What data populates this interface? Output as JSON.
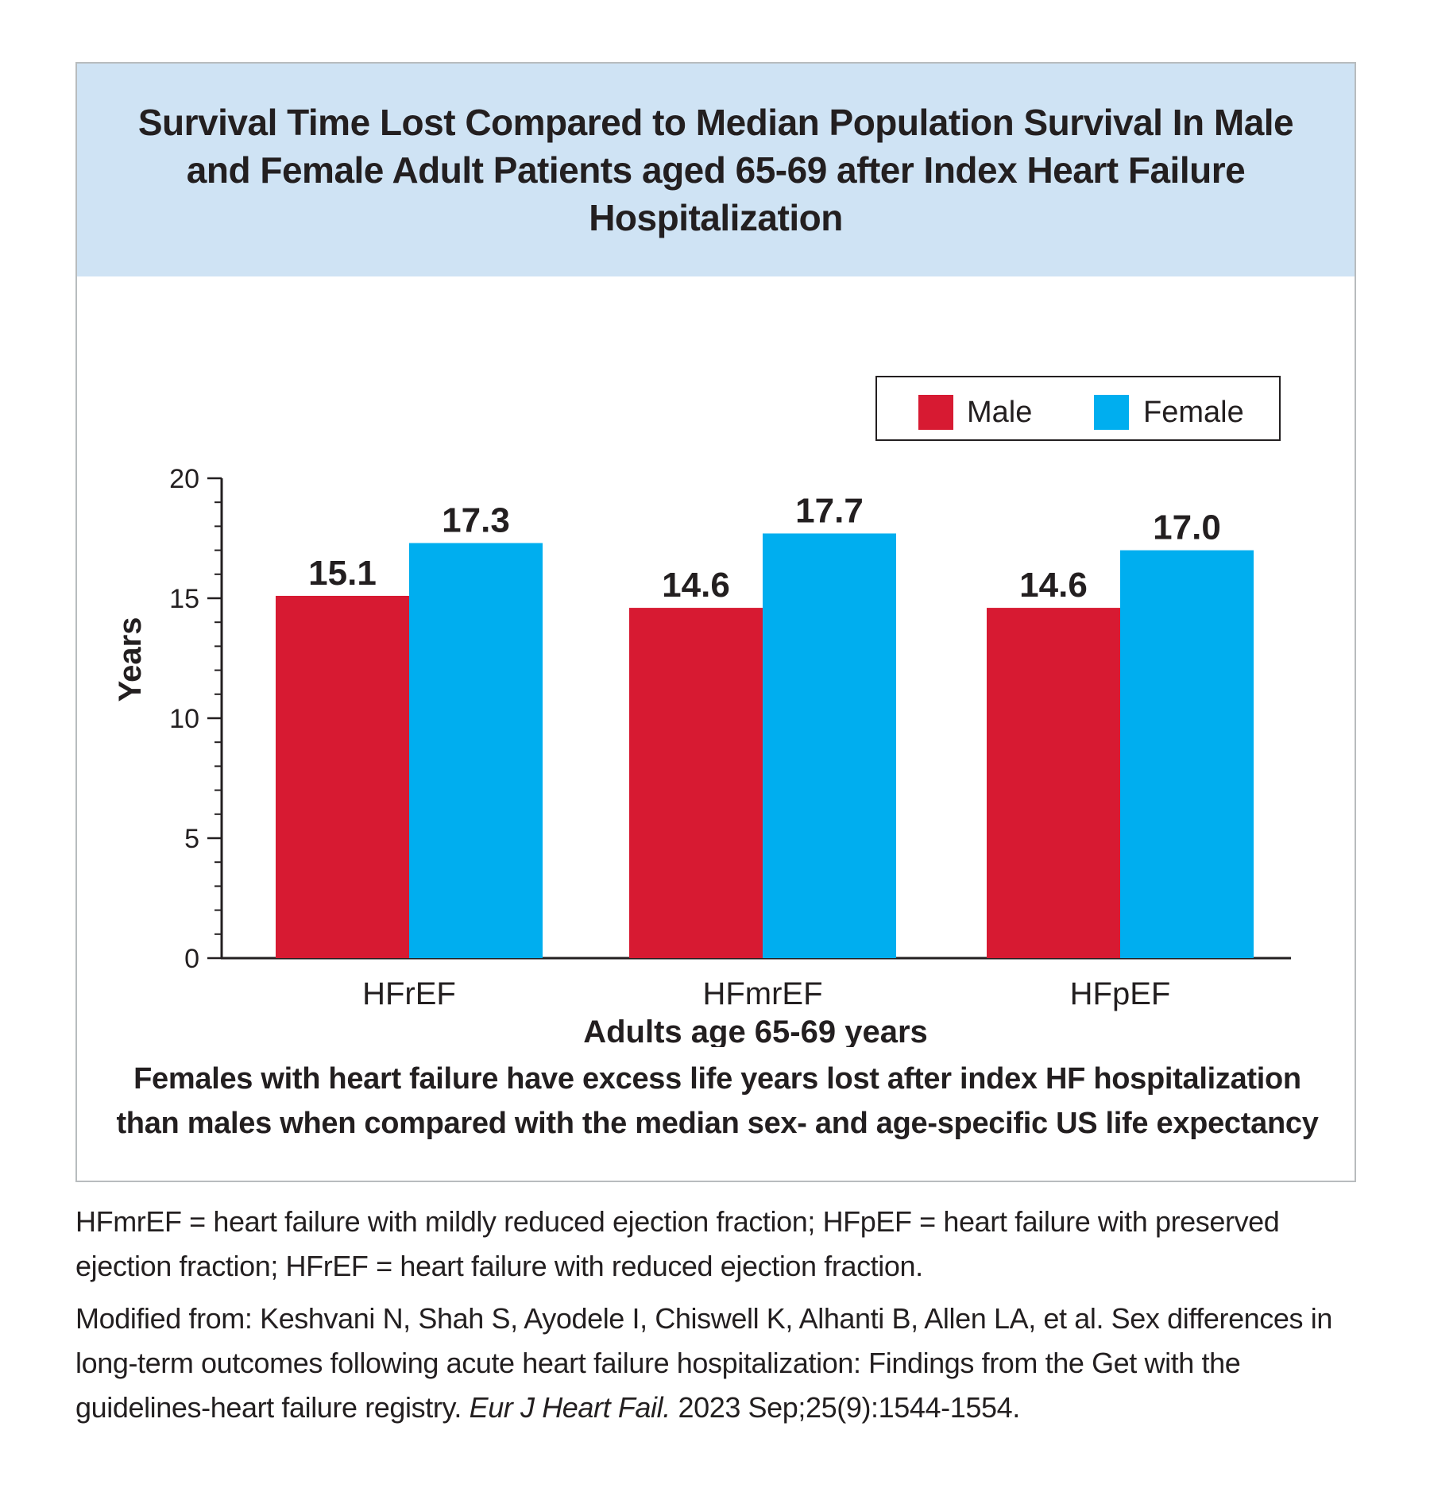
{
  "chart_data": {
    "type": "bar",
    "title": "Survival Time Lost Compared to Median Population Survival In Male and Female Adult Patients aged 65-69 after Index Heart Failure Hospitalization",
    "categories": [
      "HFrEF",
      "HFmrEF",
      "HFpEF"
    ],
    "series": [
      {
        "name": "Male",
        "color": "#d71a32",
        "values": [
          15.1,
          14.6,
          14.6
        ]
      },
      {
        "name": "Female",
        "color": "#00aeef",
        "values": [
          17.3,
          17.7,
          17.0
        ]
      }
    ],
    "data_labels": [
      [
        "15.1",
        "14.6",
        "14.6"
      ],
      [
        "17.3",
        "17.7",
        "17.0"
      ]
    ],
    "xlabel": "Adults age 65-69 years",
    "ylabel": "Years",
    "ylim": [
      0,
      20
    ],
    "yticks": [
      0,
      5,
      10,
      15,
      20
    ],
    "ytick_labels": [
      "0",
      "5",
      "10",
      "15",
      "20"
    ],
    "minor_tick_step": 1,
    "grid": false,
    "legend_position": "top-right"
  },
  "takeaway": "Females with heart failure have excess life years lost after index HF hospitalization than males when compared with the median sex- and age-specific US life expectancy",
  "footnotes": {
    "abbreviations": "HFmrEF = heart failure with mildly reduced ejection fraction; HFpEF = heart failure with preserved ejection fraction; HFrEF =  heart failure with reduced ejection fraction.",
    "source_prefix": "Modified from: Keshvani N, Shah S, Ayodele I, Chiswell K, Alhanti B, Allen LA, et al. Sex differences in long-term outcomes following acute heart failure hospitalization: Findings from the Get with the guidelines-heart failure registry. ",
    "source_journal": "Eur J Heart Fail.",
    "source_suffix": " 2023 Sep;25(9):1544-1554."
  },
  "colors": {
    "title_band": "#cfe3f4",
    "frame_border": "#b8bcbe"
  }
}
